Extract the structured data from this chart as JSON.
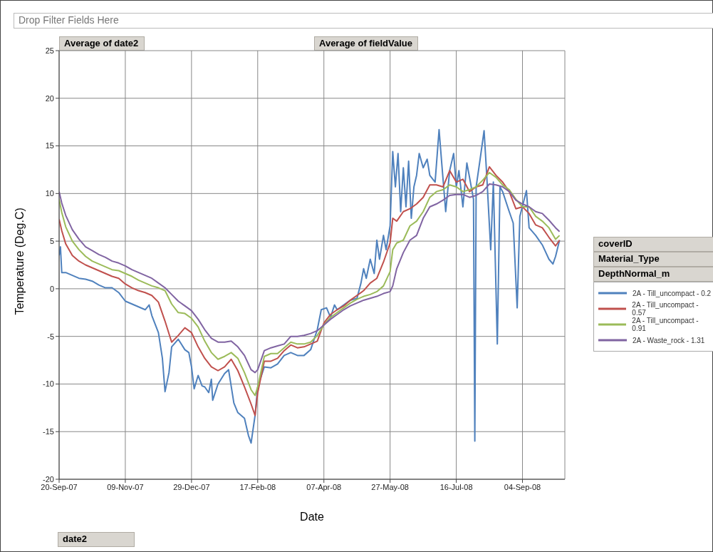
{
  "chart_data": {
    "type": "line",
    "xlabel": "Date",
    "ylabel": "Temperature (Deg.C)",
    "annotations": [
      "Drop Filter Fields Here",
      "Average of date2",
      "Average of fieldValue",
      "coverID",
      "Material_Type",
      "DepthNormal_m",
      "date2"
    ],
    "x": [
      "2007-09-20",
      "2007-09-22",
      "2007-09-25",
      "2007-09-30",
      "2007-10-05",
      "2007-10-10",
      "2007-10-15",
      "2007-10-20",
      "2007-10-25",
      "2007-10-30",
      "2007-11-04",
      "2007-11-09",
      "2007-11-14",
      "2007-11-19",
      "2007-11-24",
      "2007-11-29",
      "2007-12-04",
      "2007-12-09",
      "2007-12-14",
      "2007-12-19",
      "2007-12-24",
      "2007-12-29",
      "2008-01-03",
      "2008-01-08",
      "2008-01-13",
      "2008-01-18",
      "2008-01-23",
      "2008-01-28",
      "2008-02-02",
      "2008-02-07",
      "2008-02-12",
      "2008-02-15",
      "2008-02-17",
      "2008-02-22",
      "2008-02-27",
      "2008-03-03",
      "2008-03-08",
      "2008-03-13",
      "2008-03-18",
      "2008-03-23",
      "2008-03-28",
      "2008-04-02",
      "2008-04-07",
      "2008-04-12",
      "2008-04-17",
      "2008-04-22",
      "2008-04-27",
      "2008-05-02",
      "2008-05-07",
      "2008-05-12",
      "2008-05-17",
      "2008-05-22",
      "2008-05-27",
      "2008-05-29",
      "2008-06-01",
      "2008-06-06",
      "2008-06-11",
      "2008-06-16",
      "2008-06-21",
      "2008-06-26",
      "2008-07-01",
      "2008-07-06",
      "2008-07-11",
      "2008-07-16",
      "2008-07-21",
      "2008-07-26",
      "2008-07-31",
      "2008-08-05",
      "2008-08-10",
      "2008-08-15",
      "2008-08-20",
      "2008-08-25",
      "2008-08-30",
      "2008-09-04",
      "2008-09-09",
      "2008-09-14",
      "2008-09-19",
      "2008-09-24",
      "2008-09-29",
      "2008-10-02"
    ],
    "series": [
      {
        "name": "2A - Till_uncompact - 0.2",
        "color": "#4f81bd",
        "x": [
          "2007-09-20",
          "2007-09-21",
          "2007-09-22",
          "2007-09-25",
          "2007-09-30",
          "2007-10-05",
          "2007-10-10",
          "2007-10-15",
          "2007-10-20",
          "2007-10-25",
          "2007-10-30",
          "2007-11-04",
          "2007-11-09",
          "2007-11-14",
          "2007-11-19",
          "2007-11-24",
          "2007-11-27",
          "2007-11-29",
          "2007-12-04",
          "2007-12-07",
          "2007-12-09",
          "2007-12-12",
          "2007-12-14",
          "2007-12-19",
          "2007-12-24",
          "2007-12-27",
          "2007-12-29",
          "2007-12-31",
          "2008-01-03",
          "2008-01-06",
          "2008-01-08",
          "2008-01-11",
          "2008-01-13",
          "2008-01-14",
          "2008-01-18",
          "2008-01-23",
          "2008-01-26",
          "2008-01-30",
          "2008-02-02",
          "2008-02-07",
          "2008-02-10",
          "2008-02-12",
          "2008-02-15",
          "2008-02-17",
          "2008-02-22",
          "2008-02-27",
          "2008-03-03",
          "2008-03-08",
          "2008-03-13",
          "2008-03-18",
          "2008-03-23",
          "2008-03-28",
          "2008-04-02",
          "2008-04-05",
          "2008-04-09",
          "2008-04-12",
          "2008-04-15",
          "2008-04-17",
          "2008-04-22",
          "2008-04-27",
          "2008-05-02",
          "2008-05-05",
          "2008-05-07",
          "2008-05-09",
          "2008-05-12",
          "2008-05-15",
          "2008-05-17",
          "2008-05-19",
          "2008-05-22",
          "2008-05-24",
          "2008-05-27",
          "2008-05-29",
          "2008-05-31",
          "2008-06-02",
          "2008-06-04",
          "2008-06-06",
          "2008-06-08",
          "2008-06-10",
          "2008-06-12",
          "2008-06-14",
          "2008-06-16",
          "2008-06-18",
          "2008-06-21",
          "2008-06-24",
          "2008-06-26",
          "2008-06-30",
          "2008-07-03",
          "2008-07-05",
          "2008-07-08",
          "2008-07-11",
          "2008-07-14",
          "2008-07-16",
          "2008-07-18",
          "2008-07-21",
          "2008-07-24",
          "2008-07-26",
          "2008-07-29",
          "2008-07-30",
          "2008-07-31",
          "2008-08-03",
          "2008-08-06",
          "2008-08-08",
          "2008-08-11",
          "2008-08-13",
          "2008-08-16",
          "2008-08-18",
          "2008-08-20",
          "2008-08-25",
          "2008-08-28",
          "2008-08-31",
          "2008-09-02",
          "2008-09-07",
          "2008-09-09",
          "2008-09-14",
          "2008-09-19",
          "2008-09-24",
          "2008-09-27",
          "2008-09-29",
          "2008-10-02"
        ],
        "values": [
          3.5,
          4.4,
          1.7,
          1.7,
          1.4,
          1.1,
          1.0,
          0.8,
          0.4,
          0.1,
          0.1,
          -0.4,
          -1.3,
          -1.6,
          -1.9,
          -2.2,
          -1.7,
          -2.8,
          -4.6,
          -7.3,
          -10.8,
          -8.8,
          -6.1,
          -5.3,
          -6.4,
          -6.7,
          -8.2,
          -10.5,
          -9.1,
          -10.2,
          -10.3,
          -10.9,
          -9.5,
          -11.7,
          -10.0,
          -8.9,
          -8.5,
          -12.0,
          -13.0,
          -13.6,
          -15.4,
          -16.2,
          -13.3,
          -10.3,
          -8.2,
          -8.3,
          -7.9,
          -7.0,
          -6.7,
          -7.0,
          -7.0,
          -6.4,
          -4.3,
          -2.2,
          -2.0,
          -3.0,
          -1.7,
          -2.2,
          -1.7,
          -1.2,
          -1.0,
          0.6,
          2.1,
          1.1,
          3.1,
          1.6,
          5.1,
          3.1,
          5.6,
          4.1,
          6.6,
          14.4,
          10.7,
          14.2,
          8.1,
          12.7,
          8.6,
          13.4,
          7.4,
          10.7,
          11.9,
          14.2,
          12.7,
          13.6,
          11.9,
          11.2,
          16.7,
          13.2,
          8.1,
          12.4,
          14.2,
          10.7,
          12.4,
          8.6,
          13.2,
          11.7,
          9.4,
          -16.0,
          10.7,
          13.6,
          16.6,
          11.9,
          4.1,
          11.2,
          -5.8,
          10.7,
          10.2,
          8.1,
          6.9,
          -2.0,
          7.6,
          10.3,
          6.4,
          5.6,
          4.6,
          3.1,
          2.6,
          3.4,
          5.1
        ]
      },
      {
        "name": "2A - Till_uncompact - 0.57",
        "color": "#c0504d",
        "values": [
          7.3,
          6.1,
          4.7,
          3.5,
          2.9,
          2.5,
          2.2,
          1.9,
          1.6,
          1.3,
          1.1,
          0.5,
          0.1,
          -0.2,
          -0.4,
          -0.7,
          -1.4,
          -3.4,
          -5.6,
          -4.9,
          -4.1,
          -4.6,
          -6.1,
          -7.3,
          -8.2,
          -8.6,
          -8.2,
          -7.4,
          -8.6,
          -10.3,
          -12.1,
          -13.3,
          -10.9,
          -7.6,
          -7.6,
          -7.3,
          -6.5,
          -5.9,
          -6.2,
          -6.1,
          -5.8,
          -5.5,
          -3.6,
          -2.7,
          -2.2,
          -1.8,
          -1.2,
          -0.7,
          -0.2,
          0.6,
          1.1,
          2.8,
          4.8,
          7.4,
          7.1,
          8.1,
          8.4,
          8.9,
          9.6,
          10.9,
          10.9,
          10.7,
          12.4,
          11.2,
          11.5,
          10.2,
          10.7,
          10.9,
          12.8,
          11.9,
          11.2,
          10.2,
          8.4,
          8.6,
          7.9,
          6.7,
          6.4,
          5.4,
          4.5,
          5.1
        ]
      },
      {
        "name": "2A - Till_uncompact - 0.91",
        "color": "#9bbb59",
        "values": [
          9.4,
          8.0,
          6.5,
          5.0,
          4.1,
          3.4,
          2.9,
          2.6,
          2.3,
          2.0,
          1.9,
          1.6,
          1.3,
          0.9,
          0.6,
          0.3,
          0.1,
          -0.2,
          -1.6,
          -2.5,
          -2.6,
          -3.1,
          -4.0,
          -5.5,
          -6.7,
          -7.4,
          -7.1,
          -6.7,
          -7.3,
          -8.8,
          -10.6,
          -11.2,
          -10.3,
          -7.1,
          -6.8,
          -6.8,
          -6.2,
          -5.6,
          -5.8,
          -5.8,
          -5.6,
          -4.9,
          -3.8,
          -3.0,
          -2.5,
          -2.0,
          -1.5,
          -1.1,
          -0.8,
          -0.6,
          -0.3,
          0.3,
          1.8,
          4.1,
          4.8,
          5.1,
          6.6,
          7.1,
          8.1,
          9.6,
          10.2,
          10.4,
          10.9,
          10.7,
          10.2,
          10.4,
          10.7,
          11.4,
          12.2,
          11.7,
          10.9,
          10.4,
          9.4,
          8.6,
          8.6,
          7.6,
          7.1,
          6.4,
          5.2,
          5.6
        ]
      },
      {
        "name": "2A - Waste_rock - 1.31",
        "color": "#8064a2",
        "values": [
          10.2,
          9.0,
          7.7,
          6.2,
          5.2,
          4.4,
          4.0,
          3.6,
          3.3,
          2.9,
          2.7,
          2.4,
          2.0,
          1.7,
          1.4,
          1.1,
          0.6,
          0.1,
          -0.6,
          -1.3,
          -1.8,
          -2.3,
          -3.2,
          -4.3,
          -5.2,
          -5.6,
          -5.6,
          -5.5,
          -6.1,
          -7.0,
          -8.5,
          -8.8,
          -8.5,
          -6.5,
          -6.2,
          -6.0,
          -5.8,
          -5.0,
          -5.0,
          -4.9,
          -4.7,
          -4.4,
          -3.8,
          -3.2,
          -2.7,
          -2.2,
          -1.8,
          -1.5,
          -1.2,
          -1.0,
          -0.8,
          -0.5,
          -0.3,
          0.3,
          2.1,
          3.8,
          5.1,
          5.6,
          7.4,
          8.6,
          8.9,
          9.3,
          9.8,
          9.9,
          9.9,
          9.6,
          9.8,
          10.2,
          11.0,
          10.9,
          10.7,
          10.2,
          9.3,
          8.9,
          8.6,
          8.1,
          7.9,
          7.2,
          6.4,
          6.0
        ]
      }
    ],
    "xlim": [
      "2007-09-20",
      "2008-10-06"
    ],
    "xticks": [
      {
        "value": "2007-09-20",
        "label": "20-Sep-07"
      },
      {
        "value": "2007-11-09",
        "label": "09-Nov-07"
      },
      {
        "value": "2007-12-29",
        "label": "29-Dec-07"
      },
      {
        "value": "2008-02-17",
        "label": "17-Feb-08"
      },
      {
        "value": "2008-04-07",
        "label": "07-Apr-08"
      },
      {
        "value": "2008-05-27",
        "label": "27-May-08"
      },
      {
        "value": "2008-07-16",
        "label": "16-Jul-08"
      },
      {
        "value": "2008-09-04",
        "label": "04-Sep-08"
      }
    ],
    "ylim": [
      -20,
      25
    ],
    "yticks": [
      -20,
      -15,
      -10,
      -5,
      0,
      5,
      10,
      15,
      20,
      25
    ],
    "grid": true,
    "legend": "right",
    "marker": "none",
    "line_style": "solid"
  }
}
